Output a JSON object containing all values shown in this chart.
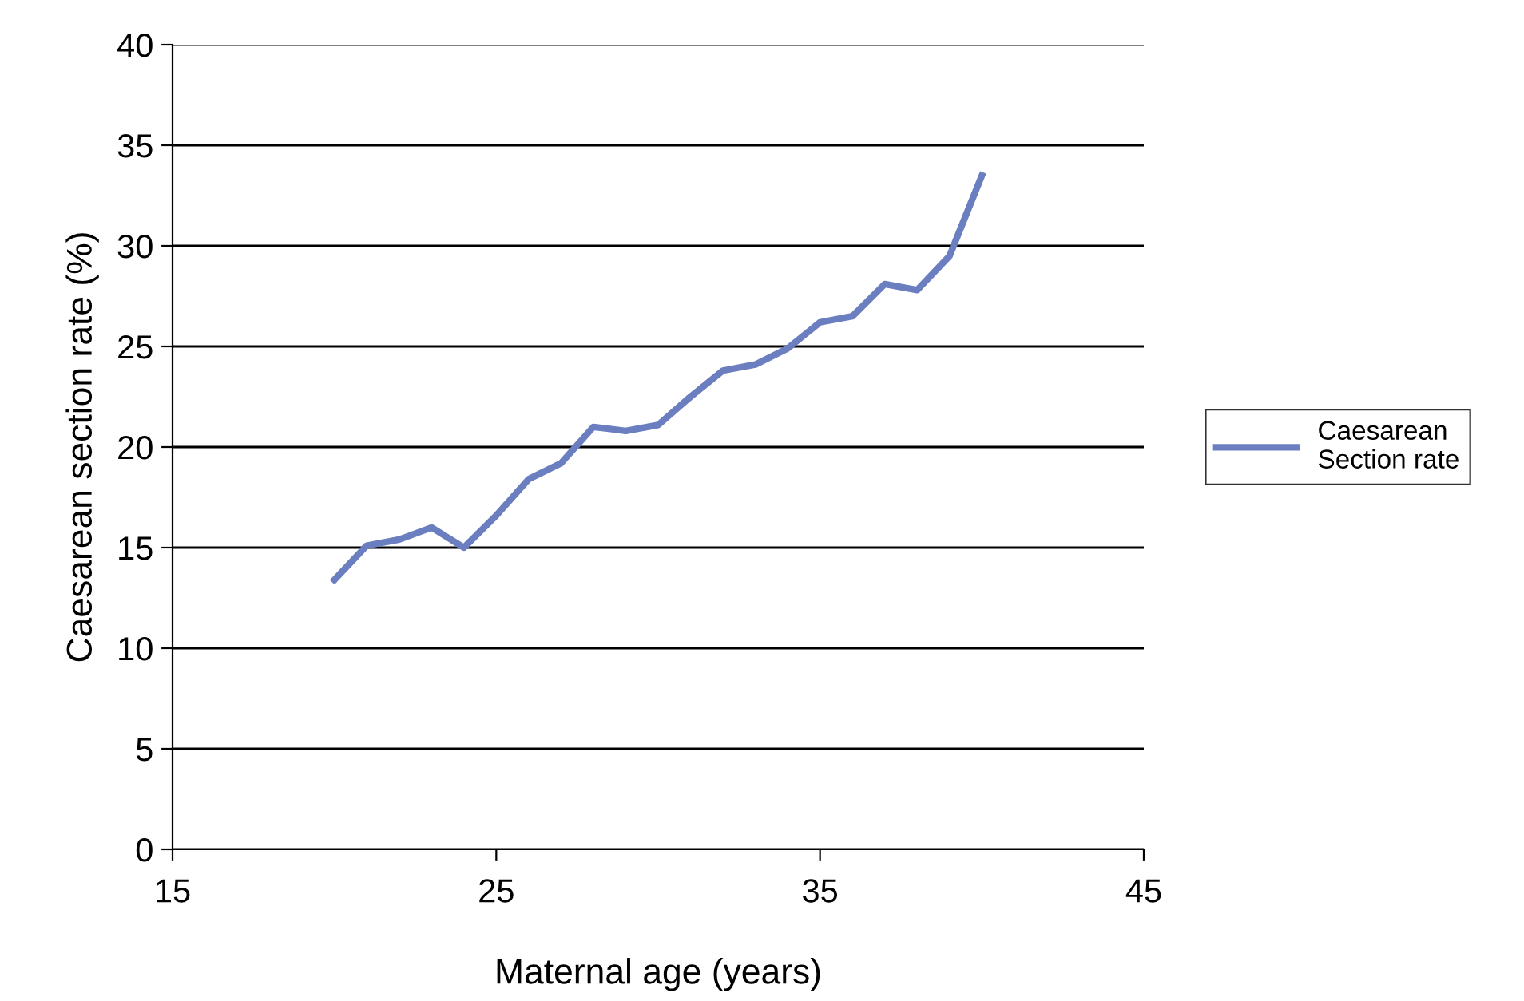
{
  "chart_data": {
    "type": "line",
    "xlabel": "Maternal age (years)",
    "ylabel": "Caesarean section rate (%)",
    "xlim": [
      15,
      45
    ],
    "xticks": [
      15,
      25,
      35,
      45
    ],
    "ylim": [
      0,
      40
    ],
    "yticks": [
      0,
      5,
      10,
      15,
      20,
      25,
      30,
      35,
      40
    ],
    "grid": "y",
    "legend": "right",
    "marker": "none",
    "line_style": "solid",
    "series": [
      {
        "name": "Caesarean\nSection rate",
        "color": "#6b7fc0",
        "x": [
          20,
          21,
          22,
          23,
          24,
          25,
          26,
          27,
          28,
          29,
          30,
          31,
          32,
          33,
          34,
          35,
          36,
          37,
          38,
          39,
          40
        ],
        "values": [
          13.4,
          15.1,
          15.4,
          16.0,
          15.0,
          16.6,
          18.4,
          19.2,
          21.0,
          20.8,
          21.1,
          22.5,
          23.8,
          24.1,
          24.9,
          26.2,
          26.5,
          28.1,
          27.8,
          29.5,
          33.5
        ]
      }
    ]
  }
}
